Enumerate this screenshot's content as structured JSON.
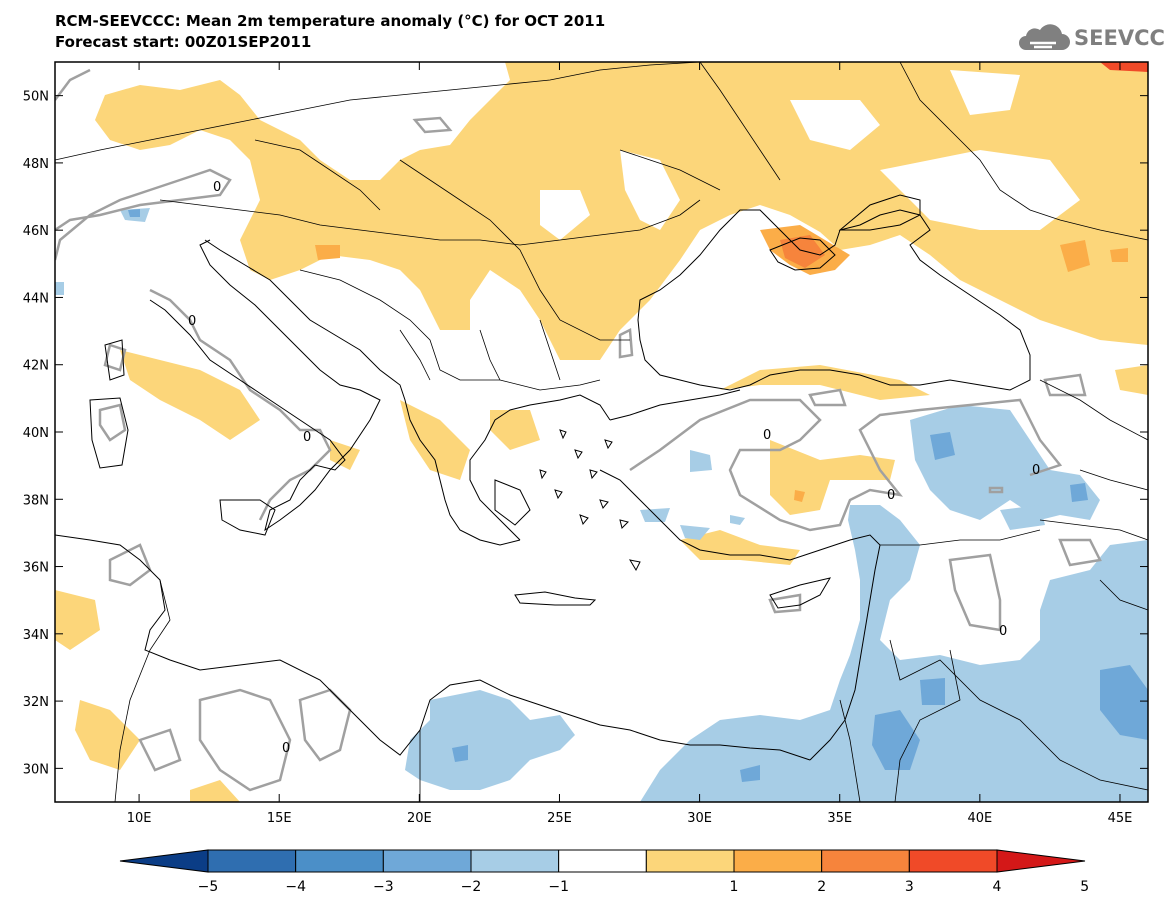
{
  "header": {
    "title": "RCM-SEEVCCC: Mean 2m temperature anomaly (°C) for OCT 2011",
    "subtitle": "Forecast start: 00Z01SEP2011",
    "logo_text": "SEEVCCC"
  },
  "map": {
    "type": "filled-contour-map",
    "variable": "Mean 2m temperature anomaly",
    "unit": "°C",
    "region": "Southeastern Europe, Black Sea, Eastern Mediterranean, Middle East",
    "lon_range": [
      7,
      46
    ],
    "lat_range": [
      29,
      51
    ],
    "lon_ticks": [
      "10E",
      "15E",
      "20E",
      "25E",
      "30E",
      "35E",
      "40E",
      "45E"
    ],
    "lat_ticks": [
      "30N",
      "32N",
      "34N",
      "36N",
      "38N",
      "40N",
      "42N",
      "44N",
      "46N",
      "48N",
      "50N"
    ],
    "zero_contour_label": "0",
    "contour_color": "#a0a0a0",
    "coastline_color": "#000000"
  },
  "colorbar": {
    "labels": [
      "−5",
      "−4",
      "−3",
      "−2",
      "−1",
      "1",
      "2",
      "3",
      "4",
      "5"
    ],
    "colors": [
      "#0b3d86",
      "#2f6eb0",
      "#4b8fc8",
      "#6fa8d8",
      "#a7cde6",
      "#ffffff",
      "#fcd67a",
      "#fbad48",
      "#f6843c",
      "#f04a28",
      "#d41818"
    ]
  },
  "logo": {
    "icon": "cloud-icon"
  }
}
